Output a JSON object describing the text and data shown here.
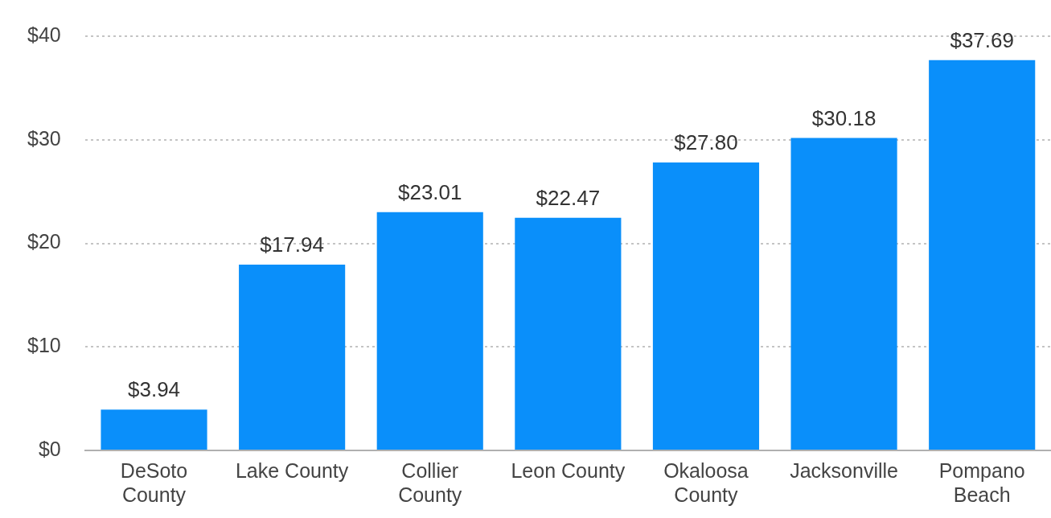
{
  "chart_data": {
    "type": "bar",
    "categories": [
      "DeSoto County",
      "Lake County",
      "Collier County",
      "Leon County",
      "Okaloosa County",
      "Jacksonville",
      "Pompano Beach"
    ],
    "values": [
      3.94,
      17.94,
      23.01,
      22.47,
      27.8,
      30.18,
      37.69
    ],
    "value_labels": [
      "$3.94",
      "$17.94",
      "$23.01",
      "$22.47",
      "$27.80",
      "$30.18",
      "$37.69"
    ],
    "color": "#0a8ffa",
    "ylim": [
      0,
      40
    ],
    "yticks": [
      {
        "value": 0,
        "label": "$0"
      },
      {
        "value": 10,
        "label": "$10"
      },
      {
        "value": 20,
        "label": "$20"
      },
      {
        "value": 30,
        "label": "$30"
      },
      {
        "value": 40,
        "label": "$40"
      }
    ],
    "grid": "y",
    "legend": false
  }
}
